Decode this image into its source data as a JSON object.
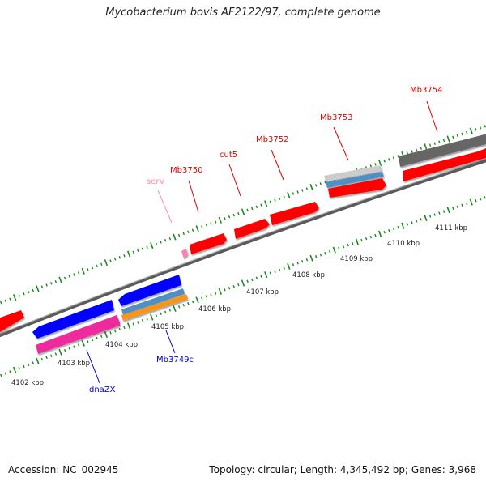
{
  "title": "Mycobacterium bovis AF2122/97, complete genome",
  "footer": {
    "accession": "Accession: NC_002945",
    "info": "Topology: circular; Length: 4,345,492 bp; Genes: 3,968"
  },
  "colors": {
    "backbone": "#777777",
    "tick": "#1a8a1a",
    "plus_strand_gene": "#ff0000",
    "minus_strand_gene": "#0000ff",
    "trna": "#ff7fb0",
    "magenta_feature": "#ee2a9c",
    "steelblue_feature": "#4f8fc4",
    "orange_feature": "#f7941d",
    "darkgray_feature": "#666666",
    "lightgray_feature": "#cccccc",
    "label_plus": "#dd0000",
    "label_minus": "#0000cc",
    "label_trna": "#ff88bb"
  },
  "scale_labels": [
    "4102 kbp",
    "4103 kbp",
    "4104 kbp",
    "4105 kbp",
    "4106 kbp",
    "4107 kbp",
    "4108 kbp",
    "4109 kbp",
    "4110 kbp",
    "4111 kbp"
  ],
  "gene_labels": {
    "Mb3754": "Mb3754",
    "Mb3753": "Mb3753",
    "Mb3752": "Mb3752",
    "cut5": "cut5",
    "Mb3750": "Mb3750",
    "serV": "serV",
    "Mb3749c": "Mb3749c",
    "dnaZX": "dnaZX"
  }
}
